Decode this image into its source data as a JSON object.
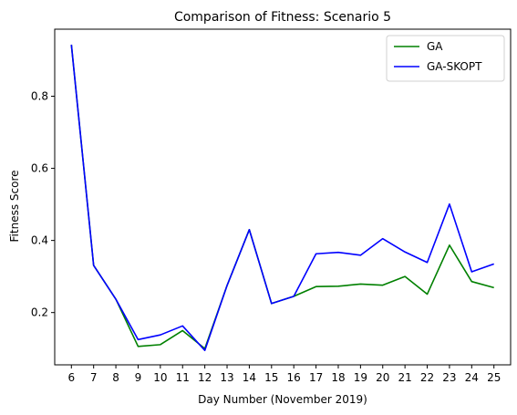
{
  "chart_data": {
    "type": "line",
    "title": "Comparison of Fitness: Scenario 5",
    "xlabel": "Day Number (November 2019)",
    "ylabel": "Fitness Score",
    "x": [
      6,
      7,
      8,
      9,
      10,
      11,
      12,
      13,
      14,
      15,
      16,
      17,
      18,
      19,
      20,
      21,
      22,
      23,
      24,
      25
    ],
    "xlim": [
      5.25,
      25.75
    ],
    "ylim": [
      0.055,
      0.986
    ],
    "yticks": [
      0.2,
      0.4,
      0.6,
      0.8
    ],
    "ytick_labels": [
      "0.2",
      "0.4",
      "0.6",
      "0.8"
    ],
    "grid": false,
    "legend_position": "top-right",
    "series": [
      {
        "name": "GA",
        "color": "#008000",
        "values": [
          0.943,
          0.331,
          0.237,
          0.106,
          0.111,
          0.15,
          0.1,
          0.275,
          0.43,
          0.225,
          0.245,
          0.272,
          0.273,
          0.279,
          0.276,
          0.3,
          0.251,
          0.387,
          0.286,
          0.269
        ]
      },
      {
        "name": "GA-SKOPT",
        "color": "#0000ff",
        "values": [
          0.943,
          0.331,
          0.237,
          0.125,
          0.138,
          0.163,
          0.095,
          0.275,
          0.43,
          0.225,
          0.245,
          0.363,
          0.367,
          0.359,
          0.405,
          0.368,
          0.339,
          0.501,
          0.313,
          0.335
        ]
      }
    ]
  }
}
